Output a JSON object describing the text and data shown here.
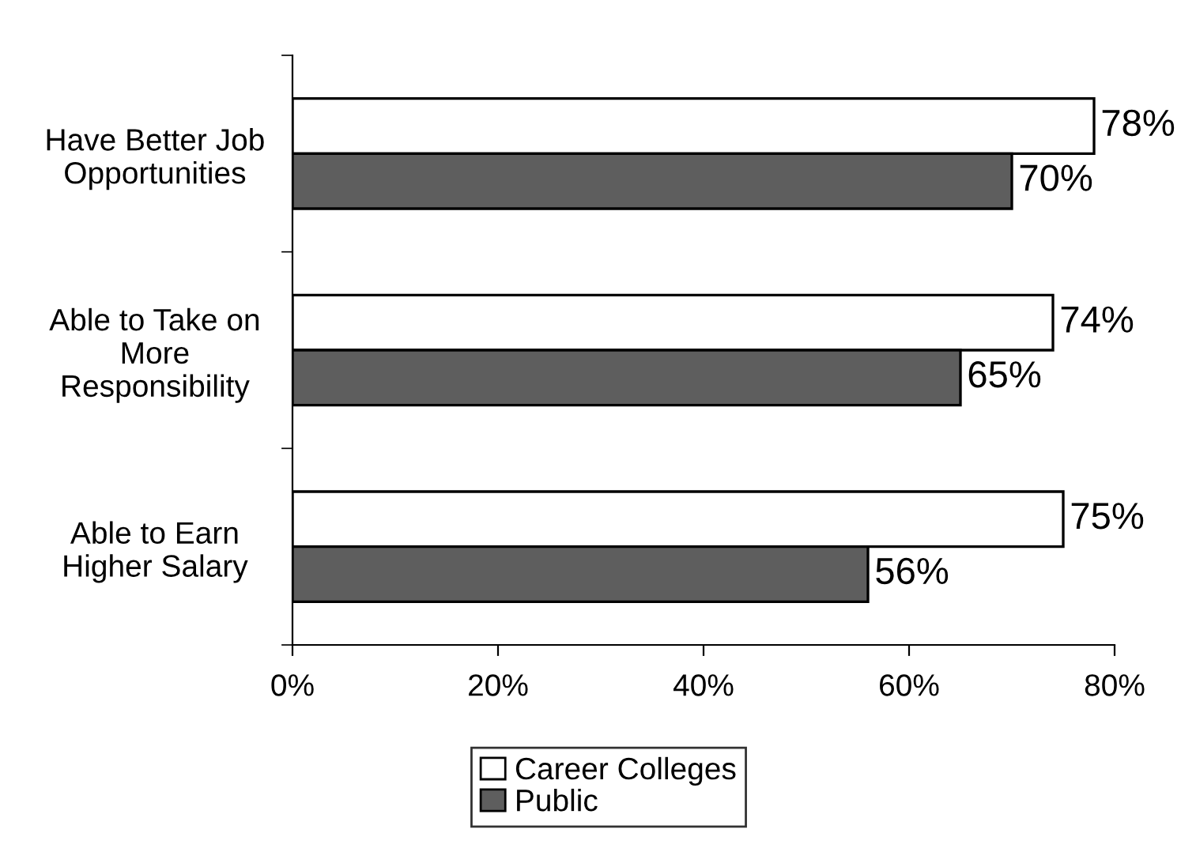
{
  "chart_data": {
    "type": "bar",
    "orientation": "horizontal",
    "categories": [
      "Have Better Job\nOpportunities",
      "Able to Take on\nMore\nResponsibility",
      "Able to Earn\nHigher Salary"
    ],
    "series": [
      {
        "name": "Career Colleges",
        "color": "#ffffff",
        "values": [
          78,
          74,
          75
        ],
        "value_labels": [
          "78%",
          "74%",
          "75%"
        ]
      },
      {
        "name": "Public",
        "color": "#5e5e5e",
        "values": [
          70,
          65,
          56
        ],
        "value_labels": [
          "70%",
          "65%",
          "56%"
        ]
      }
    ],
    "xlim": [
      0,
      80
    ],
    "xticks": [
      {
        "value": 0,
        "label": "0%"
      },
      {
        "value": 20,
        "label": "20%"
      },
      {
        "value": 40,
        "label": "40%"
      },
      {
        "value": 60,
        "label": "60%"
      },
      {
        "value": 80,
        "label": "80%"
      }
    ],
    "grid": false,
    "legend": "bottom"
  }
}
